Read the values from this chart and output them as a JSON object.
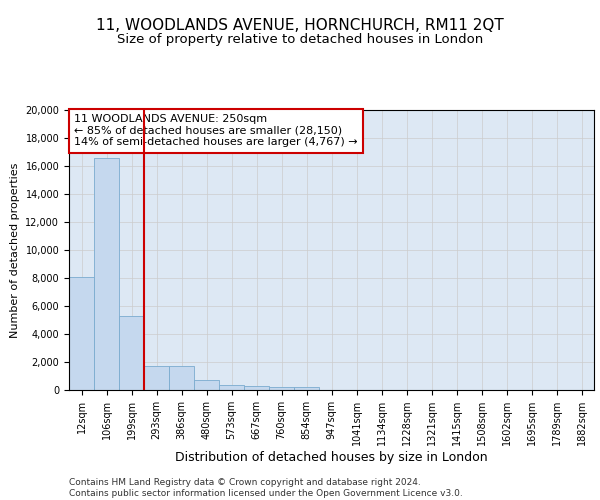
{
  "title_line1": "11, WOODLANDS AVENUE, HORNCHURCH, RM11 2QT",
  "title_line2": "Size of property relative to detached houses in London",
  "xlabel": "Distribution of detached houses by size in London",
  "ylabel": "Number of detached properties",
  "categories": [
    "12sqm",
    "106sqm",
    "199sqm",
    "293sqm",
    "386sqm",
    "480sqm",
    "573sqm",
    "667sqm",
    "760sqm",
    "854sqm",
    "947sqm",
    "1041sqm",
    "1134sqm",
    "1228sqm",
    "1321sqm",
    "1415sqm",
    "1508sqm",
    "1602sqm",
    "1695sqm",
    "1789sqm",
    "1882sqm"
  ],
  "values": [
    8100,
    16600,
    5300,
    1750,
    1750,
    700,
    350,
    270,
    220,
    190,
    0,
    0,
    0,
    0,
    0,
    0,
    0,
    0,
    0,
    0,
    0
  ],
  "bar_color": "#c5d8ee",
  "bar_edge_color": "#7aabcf",
  "vline_color": "#cc0000",
  "annotation_text": "11 WOODLANDS AVENUE: 250sqm\n← 85% of detached houses are smaller (28,150)\n14% of semi-detached houses are larger (4,767) →",
  "annotation_box_color": "#ffffff",
  "annotation_border_color": "#cc0000",
  "ylim": [
    0,
    20000
  ],
  "yticks": [
    0,
    2000,
    4000,
    6000,
    8000,
    10000,
    12000,
    14000,
    16000,
    18000,
    20000
  ],
  "grid_color": "#cccccc",
  "bg_color": "#dde8f4",
  "footer": "Contains HM Land Registry data © Crown copyright and database right 2024.\nContains public sector information licensed under the Open Government Licence v3.0.",
  "title_fontsize": 11,
  "subtitle_fontsize": 9.5,
  "xlabel_fontsize": 9,
  "ylabel_fontsize": 8,
  "tick_fontsize": 7,
  "annot_fontsize": 8,
  "footer_fontsize": 6.5
}
